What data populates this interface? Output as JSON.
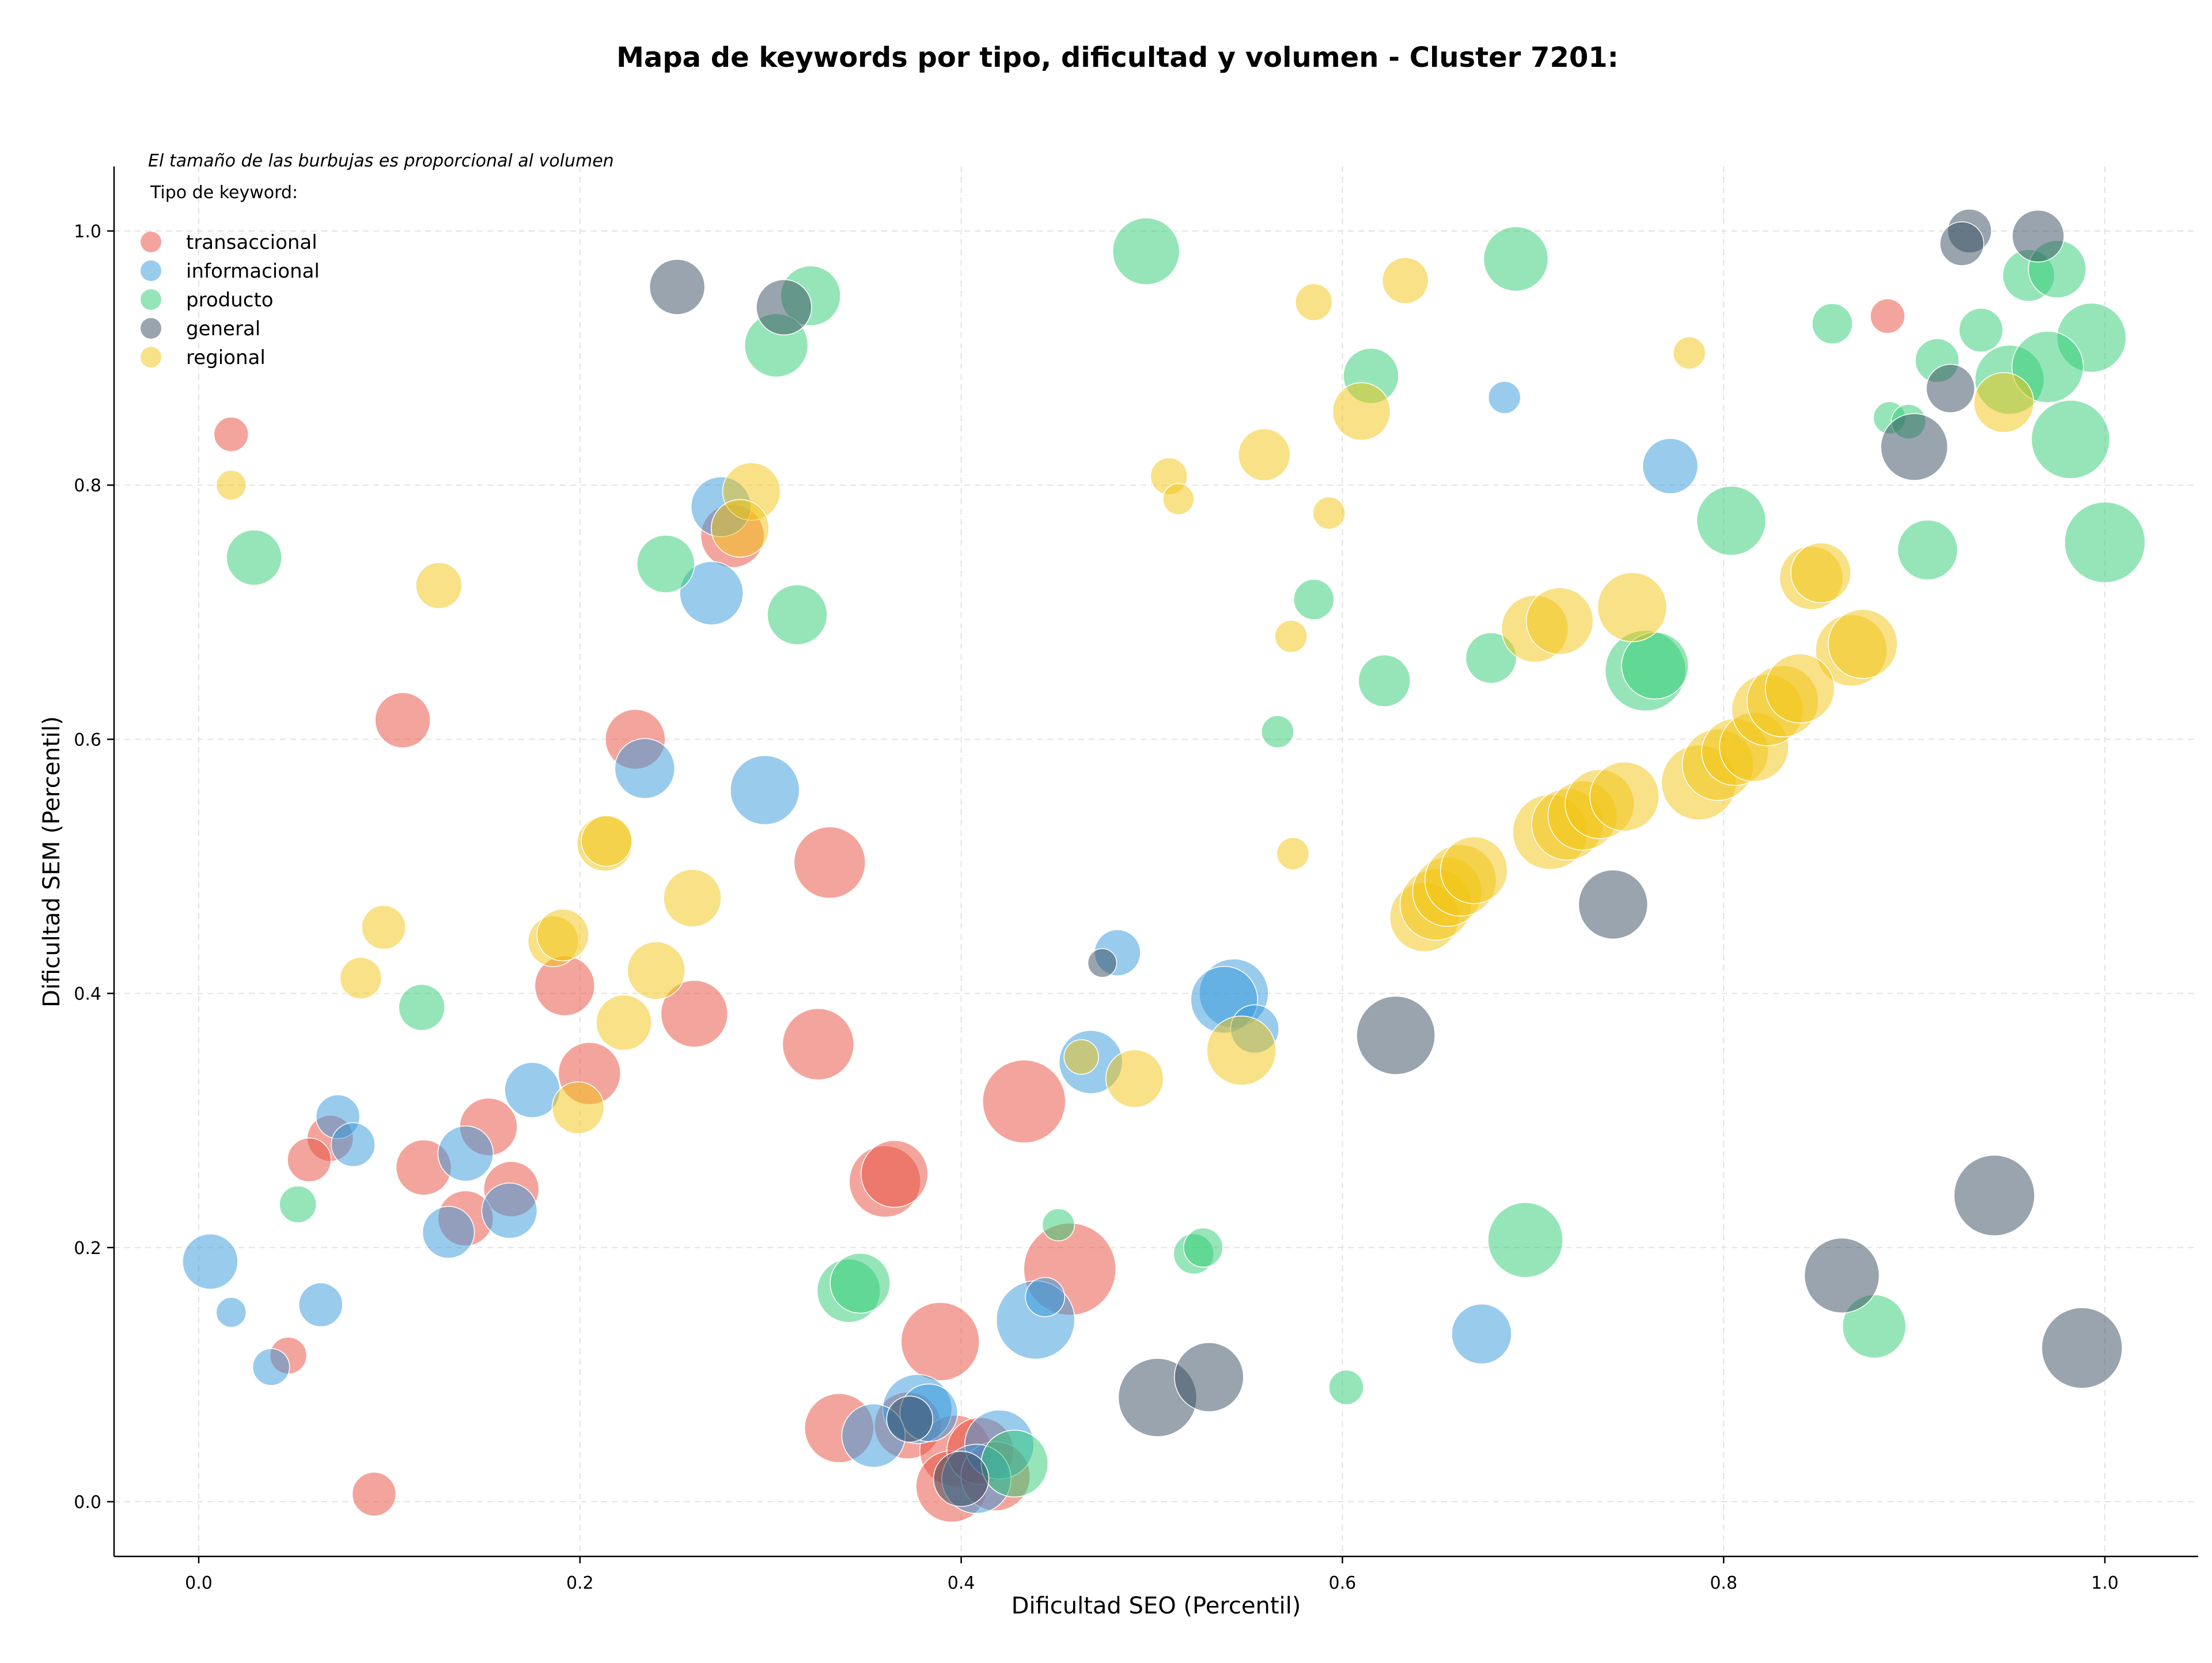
{
  "chart_data": {
    "type": "scatter",
    "title": "Mapa de keywords por tipo, dificultad y volumen - Cluster 7201:",
    "xlabel": "Dificultad SEO (Percentil)",
    "ylabel": "Dificultad SEM (Percentil)",
    "xlim": [
      -0.044,
      1.048
    ],
    "ylim": [
      -0.044,
      1.05
    ],
    "xticks": [
      "0.0",
      "0.2",
      "0.4",
      "0.6",
      "0.8",
      "1.0"
    ],
    "yticks": [
      "0.0",
      "0.2",
      "0.4",
      "0.6",
      "0.8",
      "1.0"
    ],
    "grid": true,
    "note": "El tamaño de las burbujas es proporcional al volumen",
    "legend_title": "Tipo de keyword:",
    "legend_position": "top-left",
    "series": [
      {
        "name": "transaccional",
        "color": "#e74c3c",
        "points": [
          [
            0.017,
            0.84,
            30
          ],
          [
            0.107,
            0.615,
            48
          ],
          [
            0.229,
            0.6,
            52
          ],
          [
            0.331,
            0.503,
            62
          ],
          [
            0.28,
            0.76,
            55
          ],
          [
            0.192,
            0.406,
            52
          ],
          [
            0.26,
            0.384,
            58
          ],
          [
            0.325,
            0.36,
            62
          ],
          [
            0.205,
            0.337,
            54
          ],
          [
            0.433,
            0.315,
            72
          ],
          [
            0.152,
            0.295,
            50
          ],
          [
            0.069,
            0.286,
            40
          ],
          [
            0.058,
            0.269,
            38
          ],
          [
            0.118,
            0.263,
            48
          ],
          [
            0.164,
            0.246,
            48
          ],
          [
            0.14,
            0.223,
            48
          ],
          [
            0.36,
            0.252,
            62
          ],
          [
            0.365,
            0.258,
            58
          ],
          [
            0.457,
            0.183,
            80
          ],
          [
            0.389,
            0.126,
            68
          ],
          [
            0.336,
            0.058,
            60
          ],
          [
            0.372,
            0.06,
            58
          ],
          [
            0.397,
            0.04,
            62
          ],
          [
            0.395,
            0.012,
            62
          ],
          [
            0.41,
            0.04,
            58
          ],
          [
            0.418,
            0.02,
            60
          ],
          [
            0.047,
            0.115,
            32
          ],
          [
            0.092,
            0.006,
            38
          ],
          [
            0.886,
            0.933,
            30
          ]
        ]
      },
      {
        "name": "informacional",
        "color": "#3498db",
        "points": [
          [
            0.274,
            0.783,
            52
          ],
          [
            0.269,
            0.715,
            55
          ],
          [
            0.234,
            0.577,
            52
          ],
          [
            0.297,
            0.56,
            60
          ],
          [
            0.772,
            0.815,
            48
          ],
          [
            0.685,
            0.869,
            28
          ],
          [
            0.482,
            0.432,
            40
          ],
          [
            0.543,
            0.4,
            60
          ],
          [
            0.538,
            0.395,
            58
          ],
          [
            0.554,
            0.372,
            42
          ],
          [
            0.468,
            0.346,
            55
          ],
          [
            0.175,
            0.324,
            48
          ],
          [
            0.073,
            0.303,
            38
          ],
          [
            0.081,
            0.281,
            38
          ],
          [
            0.14,
            0.274,
            48
          ],
          [
            0.163,
            0.229,
            48
          ],
          [
            0.131,
            0.212,
            45
          ],
          [
            0.006,
            0.189,
            48
          ],
          [
            0.017,
            0.149,
            26
          ],
          [
            0.064,
            0.155,
            38
          ],
          [
            0.038,
            0.106,
            32
          ],
          [
            0.439,
            0.143,
            68
          ],
          [
            0.444,
            0.161,
            34
          ],
          [
            0.673,
            0.132,
            52
          ],
          [
            0.377,
            0.073,
            60
          ],
          [
            0.383,
            0.07,
            50
          ],
          [
            0.354,
            0.052,
            55
          ],
          [
            0.42,
            0.045,
            60
          ],
          [
            0.408,
            0.018,
            60
          ]
        ]
      },
      {
        "name": "producto",
        "color": "#2ecc71",
        "points": [
          [
            0.029,
            0.743,
            48
          ],
          [
            0.321,
            0.949,
            52
          ],
          [
            0.303,
            0.91,
            55
          ],
          [
            0.497,
            0.984,
            58
          ],
          [
            0.691,
            0.978,
            56
          ],
          [
            0.615,
            0.886,
            48
          ],
          [
            0.245,
            0.738,
            50
          ],
          [
            0.314,
            0.698,
            52
          ],
          [
            0.585,
            0.71,
            35
          ],
          [
            0.566,
            0.606,
            28
          ],
          [
            0.622,
            0.646,
            45
          ],
          [
            0.678,
            0.664,
            44
          ],
          [
            0.759,
            0.654,
            70
          ],
          [
            0.764,
            0.658,
            58
          ],
          [
            0.804,
            0.772,
            60
          ],
          [
            0.857,
            0.927,
            35
          ],
          [
            0.912,
            0.898,
            38
          ],
          [
            0.935,
            0.922,
            38
          ],
          [
            0.96,
            0.965,
            45
          ],
          [
            0.975,
            0.97,
            50
          ],
          [
            0.993,
            0.916,
            60
          ],
          [
            0.95,
            0.883,
            60
          ],
          [
            0.97,
            0.893,
            62
          ],
          [
            0.887,
            0.853,
            28
          ],
          [
            0.897,
            0.85,
            30
          ],
          [
            0.982,
            0.836,
            68
          ],
          [
            1.0,
            0.755,
            70
          ],
          [
            0.907,
            0.749,
            52
          ],
          [
            0.117,
            0.389,
            40
          ],
          [
            0.052,
            0.234,
            32
          ],
          [
            0.341,
            0.166,
            55
          ],
          [
            0.347,
            0.172,
            52
          ],
          [
            0.451,
            0.218,
            28
          ],
          [
            0.522,
            0.195,
            35
          ],
          [
            0.527,
            0.2,
            34
          ],
          [
            0.696,
            0.206,
            65
          ],
          [
            0.879,
            0.138,
            55
          ],
          [
            0.602,
            0.09,
            30
          ],
          [
            0.428,
            0.03,
            58
          ]
        ]
      },
      {
        "name": "general",
        "color": "#34495e",
        "points": [
          [
            0.251,
            0.956,
            48
          ],
          [
            0.307,
            0.94,
            48
          ],
          [
            0.929,
            1.0,
            38
          ],
          [
            0.925,
            0.99,
            38
          ],
          [
            0.965,
            0.996,
            45
          ],
          [
            0.919,
            0.876,
            42
          ],
          [
            0.9,
            0.83,
            58
          ],
          [
            0.742,
            0.47,
            60
          ],
          [
            0.474,
            0.424,
            25
          ],
          [
            0.628,
            0.367,
            68
          ],
          [
            0.942,
            0.241,
            70
          ],
          [
            0.862,
            0.178,
            65
          ],
          [
            0.988,
            0.121,
            70
          ],
          [
            0.503,
            0.082,
            68
          ],
          [
            0.53,
            0.098,
            60
          ],
          [
            0.373,
            0.065,
            40
          ],
          [
            0.4,
            0.018,
            48
          ]
        ]
      },
      {
        "name": "regional",
        "color": "#f1c40f",
        "points": [
          [
            0.017,
            0.8,
            26
          ],
          [
            0.126,
            0.721,
            40
          ],
          [
            0.29,
            0.795,
            50
          ],
          [
            0.284,
            0.766,
            50
          ],
          [
            0.213,
            0.518,
            48
          ],
          [
            0.214,
            0.52,
            44
          ],
          [
            0.259,
            0.475,
            50
          ],
          [
            0.097,
            0.452,
            38
          ],
          [
            0.085,
            0.412,
            36
          ],
          [
            0.186,
            0.441,
            44
          ],
          [
            0.191,
            0.446,
            45
          ],
          [
            0.24,
            0.418,
            50
          ],
          [
            0.223,
            0.377,
            48
          ],
          [
            0.199,
            0.31,
            45
          ],
          [
            0.463,
            0.35,
            30
          ],
          [
            0.491,
            0.333,
            50
          ],
          [
            0.547,
            0.355,
            60
          ],
          [
            0.585,
            0.944,
            32
          ],
          [
            0.633,
            0.961,
            40
          ],
          [
            0.61,
            0.858,
            50
          ],
          [
            0.559,
            0.824,
            45
          ],
          [
            0.509,
            0.807,
            32
          ],
          [
            0.514,
            0.789,
            27
          ],
          [
            0.593,
            0.778,
            28
          ],
          [
            0.573,
            0.681,
            28
          ],
          [
            0.574,
            0.51,
            28
          ],
          [
            0.782,
            0.904,
            28
          ],
          [
            0.947,
            0.865,
            52
          ],
          [
            0.752,
            0.704,
            60
          ],
          [
            0.701,
            0.687,
            58
          ],
          [
            0.714,
            0.693,
            58
          ],
          [
            0.846,
            0.727,
            55
          ],
          [
            0.851,
            0.731,
            52
          ],
          [
            0.867,
            0.67,
            62
          ],
          [
            0.873,
            0.675,
            60
          ],
          [
            0.643,
            0.46,
            60
          ],
          [
            0.649,
            0.47,
            62
          ],
          [
            0.655,
            0.48,
            60
          ],
          [
            0.662,
            0.489,
            62
          ],
          [
            0.669,
            0.497,
            58
          ],
          [
            0.709,
            0.527,
            65
          ],
          [
            0.718,
            0.533,
            62
          ],
          [
            0.726,
            0.54,
            60
          ],
          [
            0.735,
            0.549,
            60
          ],
          [
            0.748,
            0.555,
            60
          ],
          [
            0.787,
            0.566,
            65
          ],
          [
            0.797,
            0.58,
            62
          ],
          [
            0.806,
            0.59,
            58
          ],
          [
            0.816,
            0.594,
            60
          ],
          [
            0.823,
            0.623,
            62
          ],
          [
            0.831,
            0.63,
            62
          ],
          [
            0.84,
            0.64,
            60
          ]
        ]
      }
    ]
  }
}
